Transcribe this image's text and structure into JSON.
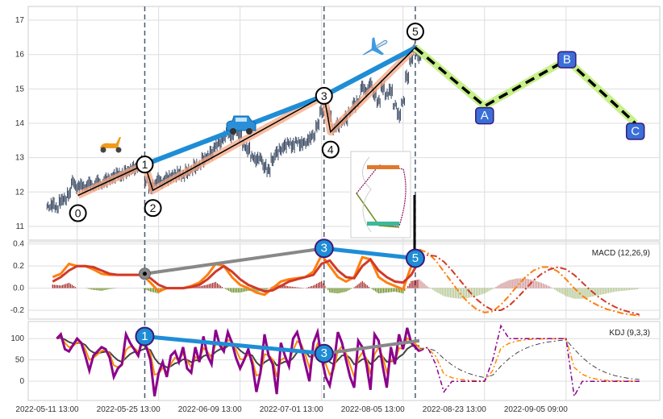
{
  "chart_data": {
    "type": "line",
    "description_units": "x = bar index (hourly bars), ticks labelled with dates",
    "x_ticks": [
      0,
      100,
      200,
      300,
      400,
      500,
      600
    ],
    "x_tick_labels": [
      "2022-05-11 13:00",
      "2022-05-25 13:00",
      "2022-06-09 13:00",
      "2022-07-01 13:00",
      "2022-08-05 13:00",
      "2022-08-23 13:00",
      "2022-09-05 09:00"
    ],
    "xlim": [
      -60,
      715
    ],
    "panels": {
      "price": {
        "ylim": [
          10.6,
          17.4
        ],
        "y_ticks": [
          11,
          12,
          13,
          14,
          15,
          16,
          17
        ],
        "y_tick_labels": [
          "11",
          "12",
          "13",
          "14",
          "15",
          "16",
          "17"
        ],
        "close": {
          "x_start": -35,
          "x_step": 5,
          "values": [
            11.55,
            11.6,
            11.5,
            11.7,
            11.75,
            11.9,
            12.25,
            12.1,
            12.15,
            12.1,
            12.2,
            12.15,
            12.25,
            12.2,
            12.3,
            12.35,
            12.4,
            12.5,
            12.45,
            12.55,
            12.6,
            12.65,
            12.7,
            12.8,
            12.3,
            12.1,
            12.2,
            12.3,
            12.25,
            12.35,
            12.4,
            12.45,
            12.5,
            12.45,
            12.55,
            12.6,
            12.7,
            12.75,
            12.9,
            13.0,
            13.1,
            13.3,
            13.4,
            13.55,
            13.7,
            13.6,
            13.75,
            13.65,
            13.3,
            13.2,
            13.0,
            12.9,
            12.95,
            12.7,
            12.6,
            12.9,
            13.1,
            13.2,
            13.3,
            13.4,
            13.3,
            13.45,
            13.35,
            13.4,
            13.5,
            13.6,
            13.9,
            14.3,
            14.7,
            14.2,
            13.8,
            13.9,
            14.0,
            14.1,
            14.3,
            14.5,
            14.6,
            15.0,
            14.9,
            15.1,
            14.8,
            14.6,
            15.0,
            14.8,
            14.9,
            14.5,
            14.2,
            14.6,
            15.3,
            15.8,
            16.1,
            15.9
          ]
        },
        "wave_points": [
          {
            "label": "0",
            "x": 1,
            "y": 11.9
          },
          {
            "label": "1",
            "x": 83,
            "y": 12.8
          },
          {
            "label": "2",
            "x": 93,
            "y": 12.05
          },
          {
            "label": "3",
            "x": 303,
            "y": 14.8
          },
          {
            "label": "4",
            "x": 311,
            "y": 13.75
          },
          {
            "label": "5",
            "x": 415,
            "y": 16.2
          }
        ],
        "projection_points": [
          {
            "label": "5",
            "x": 415,
            "y": 16.2
          },
          {
            "label": "A",
            "x": 500,
            "y": 14.5
          },
          {
            "label": "B",
            "x": 601,
            "y": 15.85
          },
          {
            "label": "C",
            "x": 685,
            "y": 14.0
          }
        ],
        "trend_line": [
          {
            "x": 83,
            "y": 12.8
          },
          {
            "x": 303,
            "y": 14.8
          },
          {
            "x": 415,
            "y": 16.2
          }
        ],
        "marker_lines_x": [
          83,
          303,
          415
        ]
      },
      "macd": {
        "legend": "MACD (12,26,9)",
        "ylim": [
          -0.28,
          0.42
        ],
        "y_ticks": [
          -0.2,
          0.0,
          0.2,
          0.4
        ],
        "y_tick_labels": [
          "-0.2",
          "0.0",
          "0.2",
          "0.4"
        ],
        "x_start": -30,
        "x_step": 10,
        "macd": [
          0.1,
          0.13,
          0.22,
          0.2,
          0.2,
          0.17,
          0.13,
          0.12,
          0.12,
          0.12,
          0.12,
          0.12,
          0.05,
          -0.03,
          0.0,
          0.0,
          0.0,
          0.02,
          0.05,
          0.12,
          0.22,
          0.2,
          0.1,
          0.03,
          0.0,
          -0.04,
          -0.06,
          0.0,
          0.06,
          0.08,
          0.09,
          0.1,
          0.15,
          0.3,
          0.2,
          0.1,
          0.06,
          0.1,
          0.28,
          0.26,
          0.1,
          0.05,
          0.02,
          -0.01,
          0.2,
          0.35
        ],
        "signal": [
          0.06,
          0.1,
          0.16,
          0.2,
          0.2,
          0.19,
          0.16,
          0.13,
          0.12,
          0.12,
          0.12,
          0.12,
          0.09,
          0.03,
          0.0,
          0.0,
          0.0,
          0.01,
          0.03,
          0.08,
          0.15,
          0.2,
          0.15,
          0.08,
          0.03,
          0.0,
          -0.03,
          -0.02,
          0.02,
          0.06,
          0.08,
          0.1,
          0.12,
          0.22,
          0.25,
          0.16,
          0.1,
          0.09,
          0.2,
          0.26,
          0.16,
          0.1,
          0.06,
          0.05,
          0.12,
          0.25
        ],
        "proj_x_start": 420,
        "proj_x_step": 10,
        "macd_projection": [
          0.35,
          0.32,
          0.25,
          0.15,
          0.05,
          -0.05,
          -0.13,
          -0.19,
          -0.22,
          -0.21,
          -0.15,
          -0.07,
          0.02,
          0.1,
          0.16,
          0.19,
          0.19,
          0.15,
          0.08,
          0.0,
          -0.07,
          -0.12,
          -0.16,
          -0.19,
          -0.21,
          -0.23,
          -0.24,
          -0.25
        ],
        "signal_projection": [
          0.25,
          0.3,
          0.29,
          0.24,
          0.16,
          0.07,
          -0.02,
          -0.1,
          -0.16,
          -0.2,
          -0.2,
          -0.16,
          -0.09,
          -0.01,
          0.07,
          0.13,
          0.17,
          0.19,
          0.17,
          0.12,
          0.05,
          -0.02,
          -0.08,
          -0.13,
          -0.17,
          -0.2,
          -0.22,
          -0.24
        ],
        "divergence": [
          {
            "label": "",
            "x": 83,
            "y": 0.13
          },
          {
            "label": "3",
            "x": 303,
            "y": 0.36
          },
          {
            "label": "5",
            "x": 415,
            "y": 0.27
          }
        ]
      },
      "kdj": {
        "legend": "KDJ (9,3,3)",
        "ylim": [
          -45,
          140
        ],
        "y_ticks": [
          0,
          50,
          100
        ],
        "y_tick_labels": [
          "0",
          "50",
          "100"
        ],
        "x_start": -25,
        "x_step": 5,
        "j": [
          100,
          110,
          75,
          70,
          85,
          100,
          90,
          60,
          25,
          60,
          70,
          80,
          75,
          55,
          10,
          30,
          40,
          110,
          90,
          75,
          60,
          100,
          80,
          50,
          -35,
          20,
          45,
          10,
          60,
          70,
          45,
          80,
          30,
          20,
          80,
          45,
          105,
          60,
          40,
          120,
          85,
          70,
          115,
          90,
          55,
          30,
          50,
          75,
          40,
          -25,
          20,
          110,
          60,
          40,
          -30,
          90,
          60,
          35,
          100,
          115,
          80,
          40,
          0,
          90,
          115,
          55,
          10,
          -10,
          40,
          115,
          90,
          50,
          10,
          -15,
          95,
          80,
          40,
          -20,
          110,
          95,
          35,
          -15,
          80,
          40,
          110,
          75,
          125,
          90,
          80,
          70
        ],
        "proj_x_start": 420,
        "proj_x_step": 10,
        "j_projection": [
          70,
          80,
          40,
          -25,
          0,
          0,
          0,
          0,
          0,
          50,
          130,
          100,
          100,
          100,
          100,
          100,
          100,
          100,
          100,
          -35,
          0,
          0,
          0,
          0,
          0,
          0,
          0,
          0
        ],
        "divergence": [
          {
            "label": "1",
            "x": 83,
            "y": 105
          },
          {
            "label": "3",
            "x": 303,
            "y": 65
          },
          {
            "label": "",
            "x": 420,
            "y": 95
          }
        ]
      }
    },
    "colors": {
      "candle": "#3a4a63",
      "wave_line": "#000000",
      "wave_band": "#f4a582",
      "trend": "#1f8dd6",
      "projection_band": "#c7f08a",
      "projection_node": "#3a6fd8",
      "macd": "#ff7f0e",
      "signal": "#d03a2a",
      "hist_pos": "#a52a2a",
      "hist_neg": "#6b8e23",
      "j": "#8b008b",
      "k": "#ff8c00",
      "d": "#444444",
      "divergence_gray": "#888888"
    }
  }
}
